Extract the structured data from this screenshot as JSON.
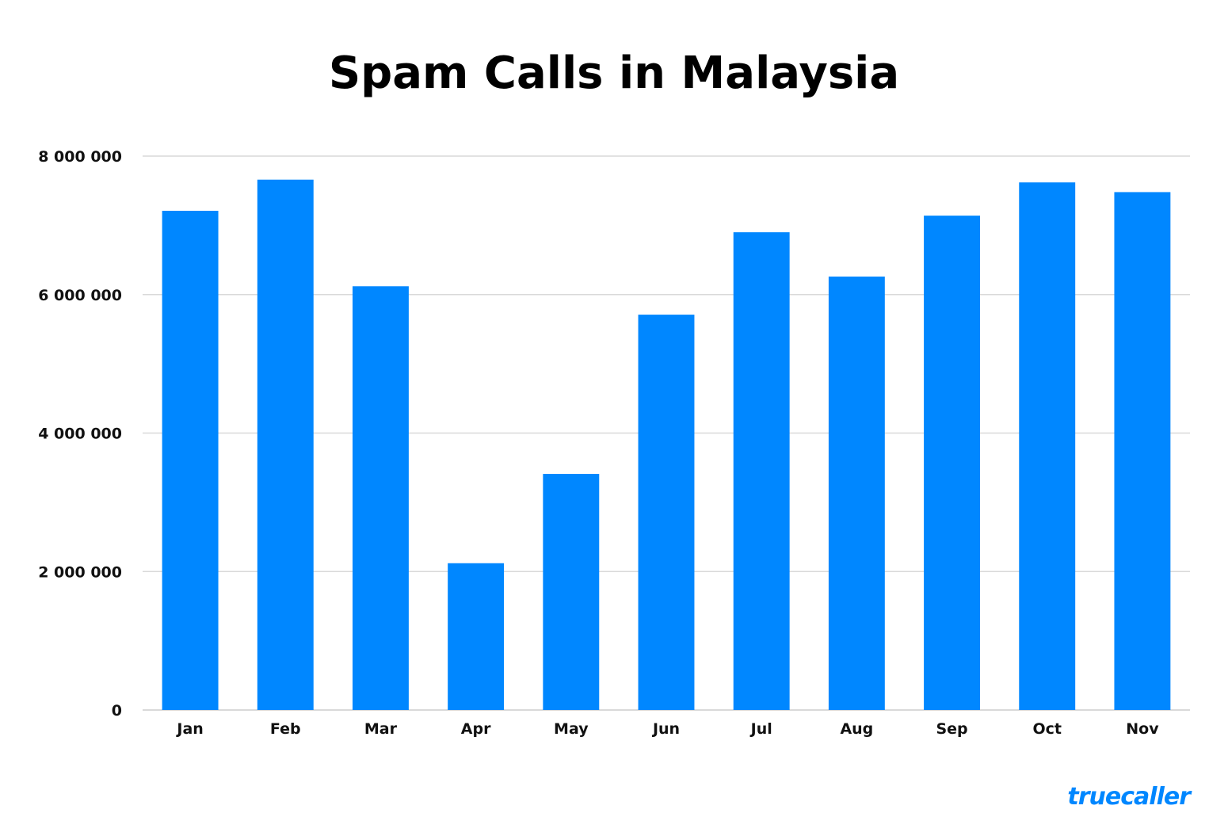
{
  "chart_data": {
    "type": "bar",
    "title": "Spam Calls in Malaysia",
    "categories": [
      "Jan",
      "Feb",
      "Mar",
      "Apr",
      "May",
      "Jun",
      "Jul",
      "Aug",
      "Sep",
      "Oct",
      "Nov"
    ],
    "values": [
      7210000,
      7660000,
      6120000,
      2120000,
      3410000,
      5710000,
      6900000,
      6260000,
      7140000,
      7620000,
      7480000
    ],
    "ylim": [
      0,
      8000000
    ],
    "yticks": [
      0,
      2000000,
      4000000,
      6000000,
      8000000
    ],
    "ytick_labels": [
      "0",
      "2 000 000",
      "4 000 000",
      "6 000 000",
      "8 000 000"
    ],
    "xlabel": "",
    "ylabel": "",
    "grid": true,
    "bar_color": "#0087ff",
    "grid_color": "#d9d9d9"
  },
  "brand": {
    "text": "truecaller",
    "color": "#0087ff"
  }
}
